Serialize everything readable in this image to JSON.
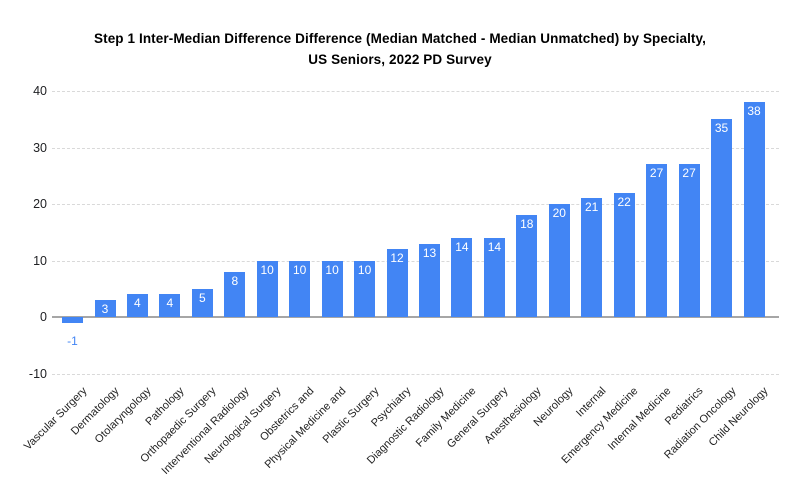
{
  "figure": {
    "title_lines": [
      "Step 1 Inter-Median Difference Difference (Median Matched - Median Unmatched) by Specialty,",
      "US Seniors, 2022 PD Survey"
    ],
    "background_color": "#ffffff"
  },
  "chart_data": {
    "type": "bar",
    "title": "Step 1 Inter-Median Difference Difference (Median Matched - Median Unmatched) by Specialty, US Seniors, 2022 PD Survey",
    "categories": [
      "Vascular Surgery",
      "Dermatology",
      "Otolaryngology",
      "Pathology",
      "Orthopaedic Surgery",
      "Interventional Radiology",
      "Neurological Surgery",
      "Obstetrics and",
      "Physical Medicine and",
      "Plastic Surgery",
      "Psychiatry",
      "Diagnostic Radiology",
      "Family Medicine",
      "General Surgery",
      "Anesthesiology",
      "Neurology",
      "Internal",
      "Emergency Medicine",
      "Internal Medicine",
      "Pediatrics",
      "Radiation Oncology",
      "Child Neurology"
    ],
    "values": [
      -1,
      3,
      4,
      4,
      5,
      8,
      10,
      10,
      10,
      10,
      12,
      13,
      14,
      14,
      18,
      20,
      21,
      22,
      27,
      27,
      35,
      38
    ],
    "xlabel": "",
    "ylabel": "",
    "ylim": [
      -10,
      40
    ],
    "yticks": [
      40,
      30,
      20,
      10,
      0,
      -10
    ],
    "grid": true,
    "legend_position": "none",
    "bar_color": "#4285f4",
    "value_label_inside_color": "#ffffff",
    "value_label_outside_color": "#4285f4",
    "axis_tick_color": "#202124",
    "category_label_color": "#222222",
    "gridline_color": "#d9d9d9",
    "baseline_color": "#a6a6a6"
  }
}
